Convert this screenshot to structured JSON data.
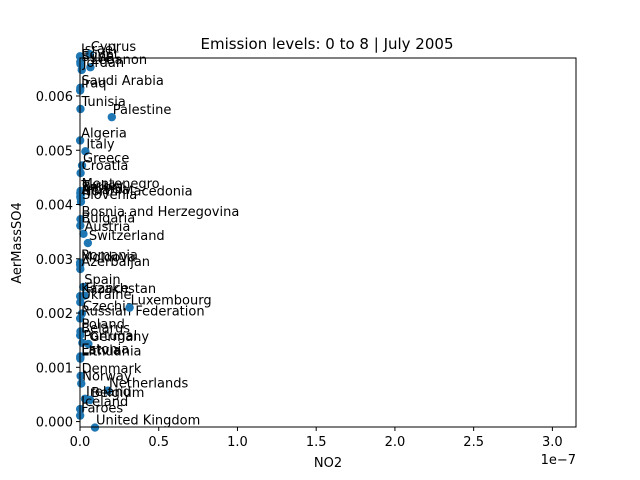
{
  "chart_data": {
    "type": "scatter",
    "title": "Emission levels: 0 to 8 | July 2005",
    "xlabel": "NO2",
    "ylabel": "AerMassSO4",
    "x_offset_label": "1e−7",
    "xlim": [
      0,
      3.15e-07
    ],
    "ylim": [
      -0.0001,
      0.0067
    ],
    "xticks": [
      0,
      5e-08,
      1e-07,
      1.5e-07,
      2e-07,
      2.5e-07,
      3e-07
    ],
    "xtick_labels": [
      "0.0",
      "0.5",
      "1.0",
      "1.5",
      "2.0",
      "2.5",
      "3.0"
    ],
    "yticks": [
      0,
      0.001,
      0.002,
      0.003,
      0.004,
      0.005,
      0.006
    ],
    "ytick_labels": [
      "0.000",
      "0.001",
      "0.002",
      "0.003",
      "0.004",
      "0.005",
      "0.006"
    ],
    "marker_color": "#1f77b4",
    "points": [
      {
        "label": "Israel",
        "x": 0.0,
        "y": 0.00673
      },
      {
        "label": "Cyprus",
        "x": 6.2e-09,
        "y": 0.00677
      },
      {
        "label": "Lebanon",
        "x": 6.6e-09,
        "y": 0.00653
      },
      {
        "label": "Egypt",
        "x": 2e-10,
        "y": 0.00663
      },
      {
        "label": "Syria",
        "x": 3e-10,
        "y": 0.00659
      },
      {
        "label": "Jordan",
        "x": 1.1e-09,
        "y": 0.00648
      },
      {
        "label": "Saudi Arabia",
        "x": 2e-10,
        "y": 0.00615
      },
      {
        "label": "Iraq",
        "x": 1e-10,
        "y": 0.0061
      },
      {
        "label": "Tunisia",
        "x": 3e-10,
        "y": 0.00576
      },
      {
        "label": "Palestine",
        "x": 2.02e-08,
        "y": 0.00561
      },
      {
        "label": "Algeria",
        "x": 1e-10,
        "y": 0.00518
      },
      {
        "label": "Italy",
        "x": 3.4e-09,
        "y": 0.00498
      },
      {
        "label": "Greece",
        "x": 1.3e-09,
        "y": 0.00472
      },
      {
        "label": "Croatia",
        "x": 4e-10,
        "y": 0.00458
      },
      {
        "label": "Montenegro",
        "x": 4e-10,
        "y": 0.00425
      },
      {
        "label": "Turkey",
        "x": 2e-10,
        "y": 0.00421
      },
      {
        "label": "Serbia",
        "x": 5e-10,
        "y": 0.00418
      },
      {
        "label": "Albania",
        "x": 2e-10,
        "y": 0.00414
      },
      {
        "label": "North Macedonia",
        "x": 5e-10,
        "y": 0.00411
      },
      {
        "label": "Slovenia",
        "x": 6e-10,
        "y": 0.00405
      },
      {
        "label": "Bosnia and Herzegovina",
        "x": 3e-10,
        "y": 0.00373
      },
      {
        "label": "Bulgaria",
        "x": 2e-10,
        "y": 0.00361
      },
      {
        "label": "Austria",
        "x": 2.2e-09,
        "y": 0.00346
      },
      {
        "label": "Switzerland",
        "x": 5e-09,
        "y": 0.00329
      },
      {
        "label": "Romania",
        "x": 1e-10,
        "y": 0.00293
      },
      {
        "label": "Moldova",
        "x": 1e-10,
        "y": 0.00289
      },
      {
        "label": "Azerbaijan",
        "x": 2e-10,
        "y": 0.00281
      },
      {
        "label": "Spain",
        "x": 2.1e-09,
        "y": 0.00248
      },
      {
        "label": "France",
        "x": 2.9e-09,
        "y": 0.00232
      },
      {
        "label": "Kazakhstan",
        "x": 1e-10,
        "y": 0.00231
      },
      {
        "label": "Ukraine",
        "x": 2e-10,
        "y": 0.0022
      },
      {
        "label": "Czechia",
        "x": 1.2e-09,
        "y": 0.00199
      },
      {
        "label": "Russian Federation",
        "x": 1e-10,
        "y": 0.0019
      },
      {
        "label": "Poland",
        "x": 3e-10,
        "y": 0.00166
      },
      {
        "label": "Belarus",
        "x": 1e-10,
        "y": 0.00159
      },
      {
        "label": "Portugal",
        "x": 1.5e-09,
        "y": 0.00145
      },
      {
        "label": "Germany",
        "x": 5.3e-09,
        "y": 0.00143
      },
      {
        "label": "Estonia",
        "x": 2e-10,
        "y": 0.0012
      },
      {
        "label": "Latvia",
        "x": 2e-10,
        "y": 0.00118
      },
      {
        "label": "Lithuania",
        "x": 2e-10,
        "y": 0.00116
      },
      {
        "label": "Denmark",
        "x": 4e-10,
        "y": 0.00084
      },
      {
        "label": "Norway",
        "x": 8e-10,
        "y": 0.0007
      },
      {
        "label": "Netherlands",
        "x": 1.78e-08,
        "y": 0.00057
      },
      {
        "label": "Ireland",
        "x": 3.2e-09,
        "y": 0.00042
      },
      {
        "label": "Belgium",
        "x": 6.4e-09,
        "y": 0.0004
      },
      {
        "label": "Iceland",
        "x": 1e-10,
        "y": 0.00023
      },
      {
        "label": "Faroes",
        "x": 1e-10,
        "y": 0.00011
      },
      {
        "label": "United Kingdom",
        "x": 9.5e-09,
        "y": -0.00011
      },
      {
        "label": "Luxembourg",
        "x": 3.15e-08,
        "y": 0.0021
      }
    ]
  }
}
